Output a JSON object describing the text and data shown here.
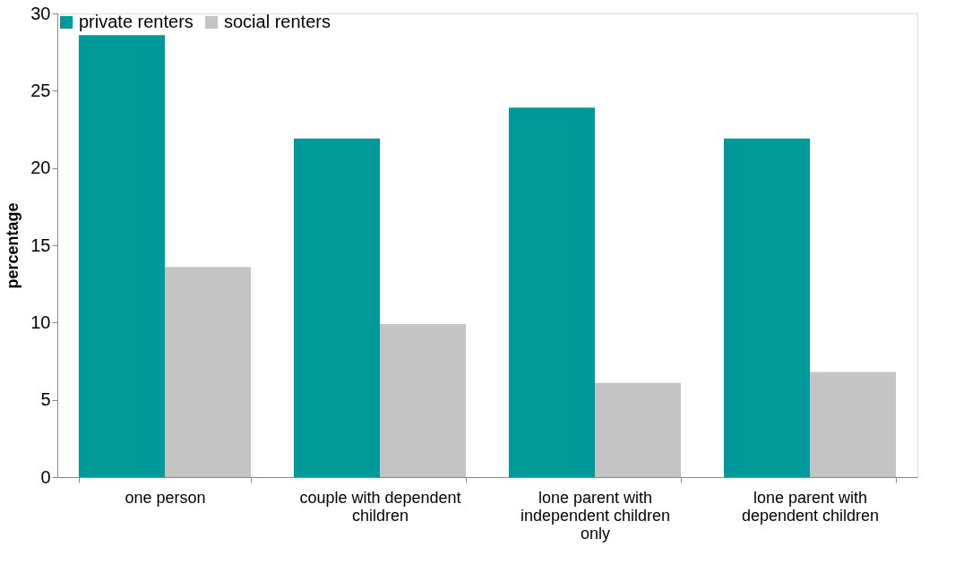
{
  "chart_data": {
    "type": "bar",
    "ylabel": "percentage",
    "categories": [
      "one person",
      "couple with dependent children",
      "lone parent with independent children only",
      "lone parent with dependent children"
    ],
    "series": [
      {
        "name": "private renters",
        "color": "#009999",
        "values": [
          28.6,
          21.9,
          23.9,
          21.9
        ]
      },
      {
        "name": "social renters",
        "color": "#c4c4c4",
        "values": [
          13.6,
          9.9,
          6.1,
          6.8
        ]
      }
    ],
    "ylim": [
      0,
      30
    ],
    "yticks": [
      0,
      5,
      10,
      15,
      20,
      25,
      30
    ],
    "grid": false,
    "legend": "top"
  }
}
